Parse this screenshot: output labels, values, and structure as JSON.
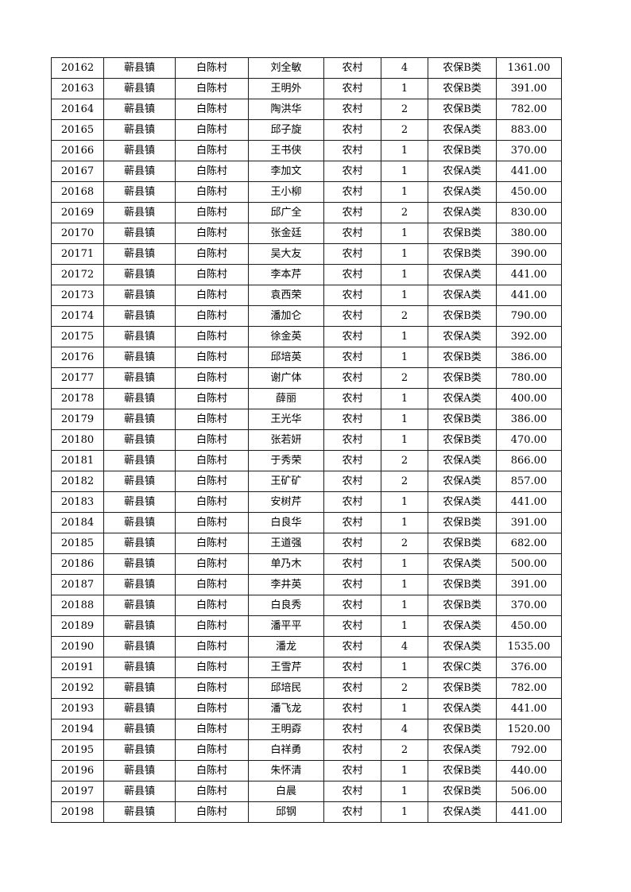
{
  "page": {
    "background_color": "#ffffff",
    "text_color": "#000000",
    "border_color": "#1a1a1a"
  },
  "table": {
    "columns": [
      "id",
      "town",
      "village",
      "name",
      "residence",
      "person-count",
      "insurance-type",
      "amount"
    ],
    "rows": [
      [
        "20162",
        "蕲县镇",
        "白陈村",
        "刘全敏",
        "农村",
        "4",
        "农保B类",
        "1361.00"
      ],
      [
        "20163",
        "蕲县镇",
        "白陈村",
        "王明外",
        "农村",
        "1",
        "农保B类",
        "391.00"
      ],
      [
        "20164",
        "蕲县镇",
        "白陈村",
        "陶洪华",
        "农村",
        "2",
        "农保B类",
        "782.00"
      ],
      [
        "20165",
        "蕲县镇",
        "白陈村",
        "邱子旋",
        "农村",
        "2",
        "农保A类",
        "883.00"
      ],
      [
        "20166",
        "蕲县镇",
        "白陈村",
        "王书侠",
        "农村",
        "1",
        "农保B类",
        "370.00"
      ],
      [
        "20167",
        "蕲县镇",
        "白陈村",
        "李加文",
        "农村",
        "1",
        "农保A类",
        "441.00"
      ],
      [
        "20168",
        "蕲县镇",
        "白陈村",
        "王小柳",
        "农村",
        "1",
        "农保A类",
        "450.00"
      ],
      [
        "20169",
        "蕲县镇",
        "白陈村",
        "邱广全",
        "农村",
        "2",
        "农保A类",
        "830.00"
      ],
      [
        "20170",
        "蕲县镇",
        "白陈村",
        "张金廷",
        "农村",
        "1",
        "农保B类",
        "380.00"
      ],
      [
        "20171",
        "蕲县镇",
        "白陈村",
        "吴大友",
        "农村",
        "1",
        "农保B类",
        "390.00"
      ],
      [
        "20172",
        "蕲县镇",
        "白陈村",
        "李本芹",
        "农村",
        "1",
        "农保A类",
        "441.00"
      ],
      [
        "20173",
        "蕲县镇",
        "白陈村",
        "袁西荣",
        "农村",
        "1",
        "农保A类",
        "441.00"
      ],
      [
        "20174",
        "蕲县镇",
        "白陈村",
        "潘加仑",
        "农村",
        "2",
        "农保B类",
        "790.00"
      ],
      [
        "20175",
        "蕲县镇",
        "白陈村",
        "徐金英",
        "农村",
        "1",
        "农保A类",
        "392.00"
      ],
      [
        "20176",
        "蕲县镇",
        "白陈村",
        "邱培英",
        "农村",
        "1",
        "农保B类",
        "386.00"
      ],
      [
        "20177",
        "蕲县镇",
        "白陈村",
        "谢广体",
        "农村",
        "2",
        "农保B类",
        "780.00"
      ],
      [
        "20178",
        "蕲县镇",
        "白陈村",
        "薛丽",
        "农村",
        "1",
        "农保A类",
        "400.00"
      ],
      [
        "20179",
        "蕲县镇",
        "白陈村",
        "王光华",
        "农村",
        "1",
        "农保B类",
        "386.00"
      ],
      [
        "20180",
        "蕲县镇",
        "白陈村",
        "张若妍",
        "农村",
        "1",
        "农保B类",
        "470.00"
      ],
      [
        "20181",
        "蕲县镇",
        "白陈村",
        "于秀荣",
        "农村",
        "2",
        "农保A类",
        "866.00"
      ],
      [
        "20182",
        "蕲县镇",
        "白陈村",
        "王矿矿",
        "农村",
        "2",
        "农保A类",
        "857.00"
      ],
      [
        "20183",
        "蕲县镇",
        "白陈村",
        "安树芹",
        "农村",
        "1",
        "农保A类",
        "441.00"
      ],
      [
        "20184",
        "蕲县镇",
        "白陈村",
        "白良华",
        "农村",
        "1",
        "农保B类",
        "391.00"
      ],
      [
        "20185",
        "蕲县镇",
        "白陈村",
        "王道强",
        "农村",
        "2",
        "农保B类",
        "682.00"
      ],
      [
        "20186",
        "蕲县镇",
        "白陈村",
        "单乃木",
        "农村",
        "1",
        "农保A类",
        "500.00"
      ],
      [
        "20187",
        "蕲县镇",
        "白陈村",
        "李井英",
        "农村",
        "1",
        "农保B类",
        "391.00"
      ],
      [
        "20188",
        "蕲县镇",
        "白陈村",
        "白良秀",
        "农村",
        "1",
        "农保B类",
        "370.00"
      ],
      [
        "20189",
        "蕲县镇",
        "白陈村",
        "潘平平",
        "农村",
        "1",
        "农保A类",
        "450.00"
      ],
      [
        "20190",
        "蕲县镇",
        "白陈村",
        "潘龙",
        "农村",
        "4",
        "农保A类",
        "1535.00"
      ],
      [
        "20191",
        "蕲县镇",
        "白陈村",
        "王雪芹",
        "农村",
        "1",
        "农保C类",
        "376.00"
      ],
      [
        "20192",
        "蕲县镇",
        "白陈村",
        "邱培民",
        "农村",
        "2",
        "农保B类",
        "782.00"
      ],
      [
        "20193",
        "蕲县镇",
        "白陈村",
        "潘飞龙",
        "农村",
        "1",
        "农保A类",
        "441.00"
      ],
      [
        "20194",
        "蕲县镇",
        "白陈村",
        "王明孬",
        "农村",
        "4",
        "农保B类",
        "1520.00"
      ],
      [
        "20195",
        "蕲县镇",
        "白陈村",
        "白祥勇",
        "农村",
        "2",
        "农保A类",
        "792.00"
      ],
      [
        "20196",
        "蕲县镇",
        "白陈村",
        "朱怀清",
        "农村",
        "1",
        "农保B类",
        "440.00"
      ],
      [
        "20197",
        "蕲县镇",
        "白陈村",
        "白晨",
        "农村",
        "1",
        "农保B类",
        "506.00"
      ],
      [
        "20198",
        "蕲县镇",
        "白陈村",
        "邱钢",
        "农村",
        "1",
        "农保A类",
        "441.00"
      ]
    ]
  }
}
